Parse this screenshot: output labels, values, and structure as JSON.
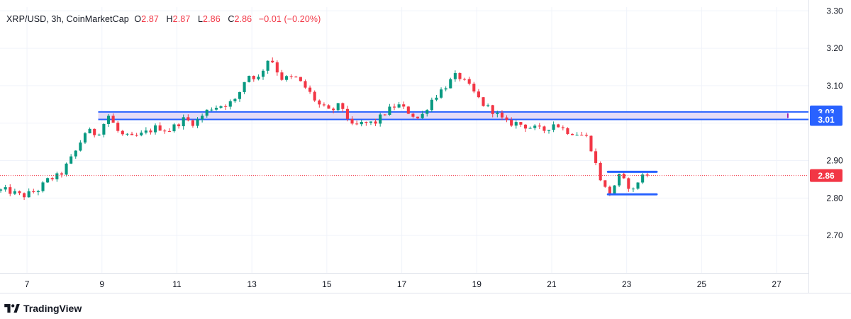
{
  "legend": {
    "symbol": "XRP/USD, 3h, CoinMarketCap",
    "o_label": "O",
    "o_value": "2.87",
    "h_label": "H",
    "h_value": "2.87",
    "l_label": "L",
    "l_value": "2.86",
    "c_label": "C",
    "c_value": "2.86",
    "change": "−0.01 (−0.20%)"
  },
  "brand": {
    "name": "TradingView",
    "icon": "tradingview-logo-icon"
  },
  "colors": {
    "up": "#089981",
    "down": "#f23645",
    "zone_fill": "#e1d6f5",
    "zone_line": "#2962ff",
    "accent": "#2962ff",
    "grid": "#f0f3fa",
    "axis_text": "#131722",
    "zone_marker": "#9c27b0"
  },
  "chart_data": {
    "type": "candlestick",
    "title": "XRP/USD, 3h, CoinMarketCap",
    "x_ticks": [
      7,
      9,
      11,
      13,
      15,
      17,
      19,
      21,
      23,
      25,
      27
    ],
    "x_tick_labels": [
      "7",
      "9",
      "11",
      "13",
      "15",
      "17",
      "19",
      "21",
      "23",
      "25",
      "27"
    ],
    "xlim": [
      6.28,
      27.85
    ],
    "y_ticks": [
      2.7,
      2.8,
      2.9,
      3.0,
      3.1,
      3.2,
      3.3
    ],
    "y_tick_labels": [
      "2.70",
      "2.80",
      "2.90",
      "",
      "3.10",
      "3.20",
      "3.30"
    ],
    "ylim": [
      2.6,
      3.31
    ],
    "grid": true,
    "last_price": 2.86,
    "last_price_label": "2.86",
    "zone": {
      "top": 3.03,
      "bottom": 3.01,
      "top_label": "3.03",
      "bottom_label": "3.01",
      "x_start": 8.9,
      "x_end": 27.3
    },
    "range_box": {
      "top": 2.87,
      "bottom": 2.81,
      "x_start": 22.5,
      "x_end": 23.8
    },
    "anchors": [
      [
        6.3,
        2.82
      ],
      [
        6.6,
        2.82
      ],
      [
        7.0,
        2.805
      ],
      [
        7.4,
        2.82
      ],
      [
        7.7,
        2.85
      ],
      [
        8.0,
        2.86
      ],
      [
        8.4,
        2.92
      ],
      [
        8.7,
        2.98
      ],
      [
        9.0,
        2.97
      ],
      [
        9.3,
        3.02
      ],
      [
        9.6,
        2.97
      ],
      [
        9.9,
        2.96
      ],
      [
        10.2,
        2.97
      ],
      [
        10.6,
        2.99
      ],
      [
        10.9,
        2.98
      ],
      [
        11.3,
        3.01
      ],
      [
        11.6,
        3.0
      ],
      [
        12.0,
        3.04
      ],
      [
        12.4,
        3.05
      ],
      [
        12.7,
        3.06
      ],
      [
        13.0,
        3.13
      ],
      [
        13.3,
        3.12
      ],
      [
        13.6,
        3.18
      ],
      [
        13.9,
        3.12
      ],
      [
        14.3,
        3.12
      ],
      [
        14.6,
        3.09
      ],
      [
        14.9,
        3.05
      ],
      [
        15.2,
        3.03
      ],
      [
        15.5,
        3.05
      ],
      [
        15.8,
        2.99
      ],
      [
        16.1,
        3.0
      ],
      [
        16.4,
        3.0
      ],
      [
        16.7,
        3.03
      ],
      [
        17.0,
        3.05
      ],
      [
        17.3,
        3.03
      ],
      [
        17.6,
        3.01
      ],
      [
        17.9,
        3.06
      ],
      [
        18.3,
        3.1
      ],
      [
        18.6,
        3.13
      ],
      [
        18.9,
        3.1
      ],
      [
        19.3,
        3.05
      ],
      [
        19.6,
        3.03
      ],
      [
        19.9,
        3.0
      ],
      [
        20.2,
        3.0
      ],
      [
        20.5,
        2.99
      ],
      [
        20.9,
        2.98
      ],
      [
        21.2,
        3.0
      ],
      [
        21.5,
        2.98
      ],
      [
        21.9,
        2.97
      ],
      [
        22.1,
        2.96
      ],
      [
        22.3,
        2.89
      ],
      [
        22.5,
        2.83
      ],
      [
        22.7,
        2.81
      ],
      [
        22.9,
        2.86
      ],
      [
        23.1,
        2.84
      ],
      [
        23.3,
        2.82
      ],
      [
        23.5,
        2.86
      ],
      [
        23.6,
        2.86
      ]
    ]
  }
}
